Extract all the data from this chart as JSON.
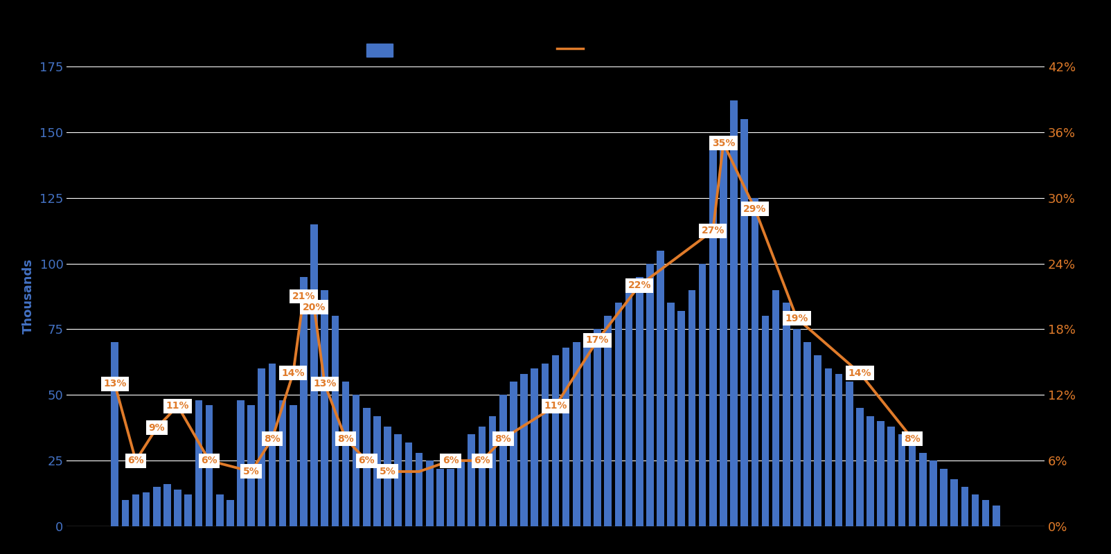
{
  "background_color": "#000000",
  "bar_color": "#4472C4",
  "line_color": "#E07B2A",
  "ylabel_left": "Thousands",
  "ylabel_left_color": "#4472C4",
  "ylabel_right_color": "#E07B2A",
  "ylim_left": [
    0,
    175
  ],
  "ylim_right": [
    0,
    0.42
  ],
  "yticks_left": [
    0,
    25,
    50,
    75,
    100,
    125,
    150,
    175
  ],
  "yticks_right": [
    0.0,
    0.06,
    0.12,
    0.18,
    0.24,
    0.3,
    0.36,
    0.42
  ],
  "ytick_labels_right": [
    "0%",
    "6%",
    "12%",
    "18%",
    "24%",
    "30%",
    "36%",
    "42%"
  ],
  "grid_color": "#ffffff",
  "bar_values": [
    70,
    10,
    12,
    13,
    15,
    16,
    14,
    12,
    48,
    46,
    12,
    10,
    48,
    46,
    60,
    62,
    48,
    46,
    95,
    115,
    90,
    80,
    55,
    50,
    45,
    42,
    38,
    35,
    32,
    28,
    25,
    22,
    22,
    25,
    35,
    38,
    42,
    50,
    55,
    58,
    60,
    62,
    65,
    68,
    70,
    72,
    75,
    80,
    85,
    90,
    95,
    100,
    105,
    85,
    82,
    90,
    100,
    145,
    148,
    162,
    155,
    125,
    80,
    90,
    85,
    75,
    70,
    65,
    60,
    58,
    55,
    45,
    42,
    40,
    38,
    35,
    32,
    28,
    25,
    22,
    18,
    15,
    12,
    10,
    8
  ],
  "line_data": [
    [
      0,
      0.13
    ],
    [
      2,
      0.06
    ],
    [
      4,
      0.09
    ],
    [
      6,
      0.11
    ],
    [
      9,
      0.06
    ],
    [
      13,
      0.05
    ],
    [
      15,
      0.08
    ],
    [
      17,
      0.14
    ],
    [
      18,
      0.21
    ],
    [
      19,
      0.2
    ],
    [
      20,
      0.13
    ],
    [
      22,
      0.08
    ],
    [
      24,
      0.06
    ],
    [
      26,
      0.05
    ],
    [
      29,
      0.05
    ],
    [
      32,
      0.06
    ],
    [
      35,
      0.06
    ],
    [
      37,
      0.08
    ],
    [
      42,
      0.11
    ],
    [
      46,
      0.17
    ],
    [
      50,
      0.22
    ],
    [
      57,
      0.27
    ],
    [
      58,
      0.35
    ],
    [
      61,
      0.29
    ],
    [
      65,
      0.19
    ],
    [
      71,
      0.14
    ],
    [
      76,
      0.08
    ]
  ],
  "annotations": [
    [
      0,
      0.13,
      "13%"
    ],
    [
      2,
      0.06,
      "6%"
    ],
    [
      4,
      0.09,
      "9%"
    ],
    [
      6,
      0.11,
      "11%"
    ],
    [
      9,
      0.06,
      "6%"
    ],
    [
      13,
      0.05,
      "5%"
    ],
    [
      15,
      0.08,
      "8%"
    ],
    [
      17,
      0.14,
      "14%"
    ],
    [
      18,
      0.21,
      "21%"
    ],
    [
      19,
      0.2,
      "20%"
    ],
    [
      20,
      0.13,
      "13%"
    ],
    [
      22,
      0.08,
      "8%"
    ],
    [
      24,
      0.06,
      "6%"
    ],
    [
      26,
      0.05,
      "5%"
    ],
    [
      32,
      0.06,
      "6%"
    ],
    [
      35,
      0.06,
      "6%"
    ],
    [
      37,
      0.08,
      "8%"
    ],
    [
      42,
      0.11,
      "11%"
    ],
    [
      46,
      0.17,
      "17%"
    ],
    [
      50,
      0.22,
      "22%"
    ],
    [
      57,
      0.27,
      "27%"
    ],
    [
      58,
      0.35,
      "35%"
    ],
    [
      61,
      0.29,
      "29%"
    ],
    [
      65,
      0.19,
      "19%"
    ],
    [
      71,
      0.14,
      "14%"
    ],
    [
      76,
      0.08,
      "8%"
    ]
  ]
}
